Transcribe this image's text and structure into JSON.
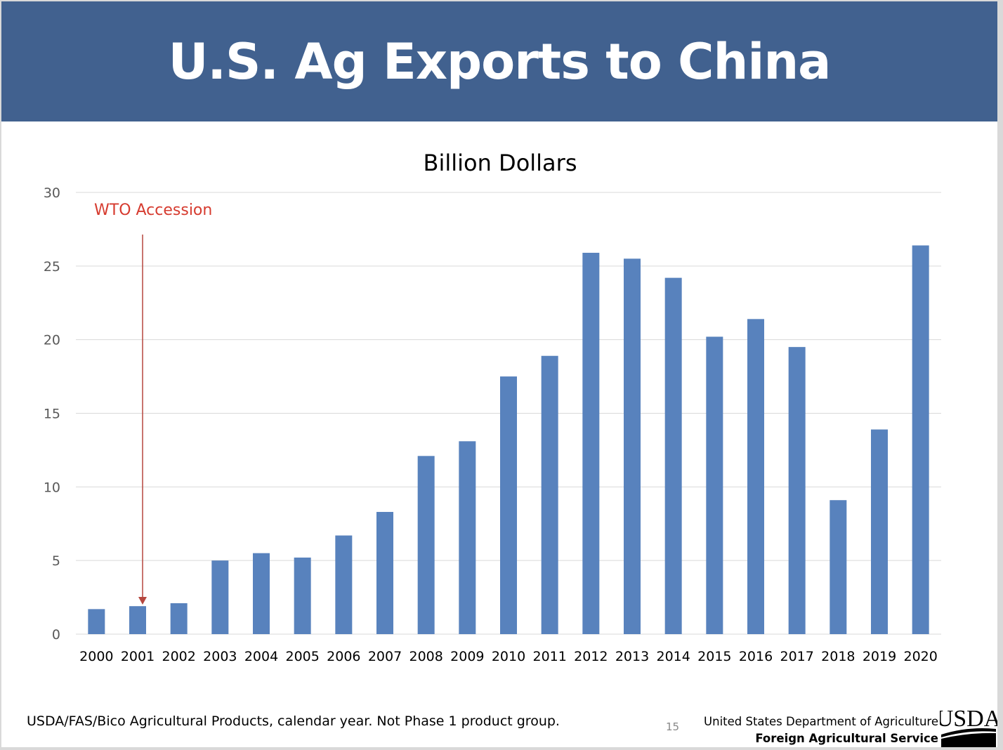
{
  "header": {
    "title": "U.S. Ag Exports to China"
  },
  "chart_data": {
    "type": "bar",
    "title": "Billion Dollars",
    "xlabel": "",
    "ylabel": "",
    "ylim": [
      0,
      30
    ],
    "yticks": [
      0,
      5,
      10,
      15,
      20,
      25,
      30
    ],
    "grid": true,
    "bar_color": "#5882bd",
    "categories": [
      "2000",
      "2001",
      "2002",
      "2003",
      "2004",
      "2005",
      "2006",
      "2007",
      "2008",
      "2009",
      "2010",
      "2011",
      "2012",
      "2013",
      "2014",
      "2015",
      "2016",
      "2017",
      "2018",
      "2019",
      "2020"
    ],
    "values": [
      1.7,
      1.9,
      2.1,
      5.0,
      5.5,
      5.2,
      6.7,
      8.3,
      12.1,
      13.1,
      17.5,
      18.9,
      25.9,
      25.5,
      24.2,
      20.2,
      21.4,
      19.5,
      9.1,
      13.9,
      26.4
    ],
    "annotation": {
      "text": "WTO Accession",
      "target": "2001",
      "color": "#d63b2f"
    }
  },
  "footer": {
    "source": "USDA/FAS/Bico Agricultural Products, calendar year.  Not Phase 1 product group.",
    "page": "15",
    "dept": "United States Department of Agriculture",
    "agency": "Foreign Agricultural Service",
    "logo_text": "USDA"
  }
}
